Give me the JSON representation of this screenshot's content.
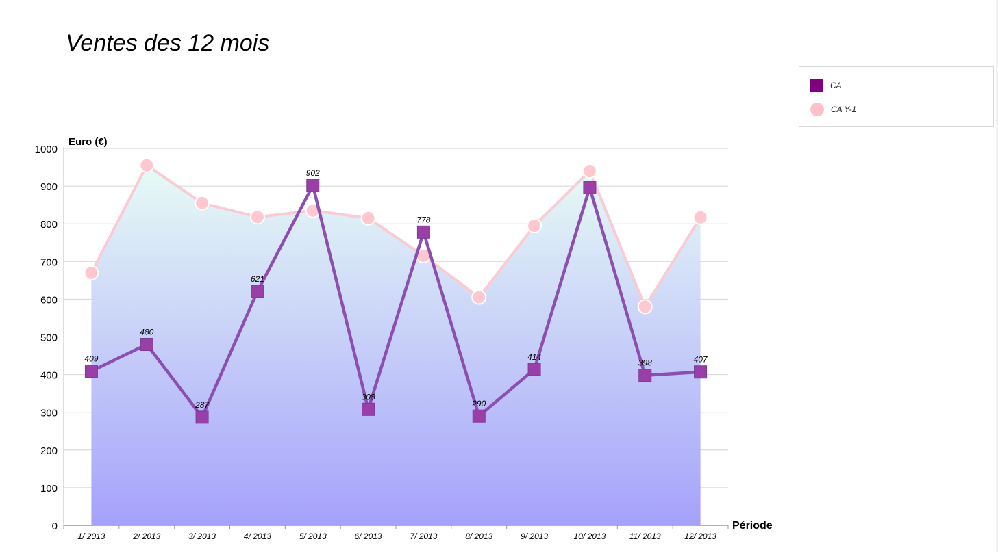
{
  "chart_data": {
    "type": "line",
    "title": "Ventes des 12 mois",
    "xlabel": "Période",
    "ylabel": "Euro (€)",
    "ylim": [
      0,
      1000
    ],
    "yticks": [
      0,
      100,
      200,
      300,
      400,
      500,
      600,
      700,
      800,
      900,
      1000
    ],
    "categories": [
      "1/ 2013",
      "2/ 2013",
      "3/ 2013",
      "4/ 2013",
      "5/ 2013",
      "6/ 2013",
      "7/ 2013",
      "8/ 2013",
      "9/ 2013",
      "10/ 2013",
      "11/ 2013",
      "12/ 2013"
    ],
    "series": [
      {
        "name": "CA",
        "color": "#8b4fb0",
        "marker": "square",
        "marker_color": "#9a3fa8",
        "values": [
          409,
          480,
          287,
          621,
          902,
          308,
          778,
          290,
          414,
          896,
          398,
          407
        ],
        "labels": [
          "409",
          "480",
          "287",
          "621",
          "902",
          "308",
          "778",
          "290",
          "414",
          "",
          "398",
          "407"
        ]
      },
      {
        "name": "CA Y-1",
        "color": "#f9ccd4",
        "marker": "circle",
        "marker_color": "#ffc7cf",
        "area": true,
        "values": [
          670,
          955,
          855,
          818,
          835,
          815,
          715,
          605,
          795,
          940,
          580,
          817
        ]
      }
    ],
    "grid": true,
    "legend_position": "top-right",
    "area_gradient": [
      "#e6fbf5",
      "#a09cfb"
    ]
  }
}
